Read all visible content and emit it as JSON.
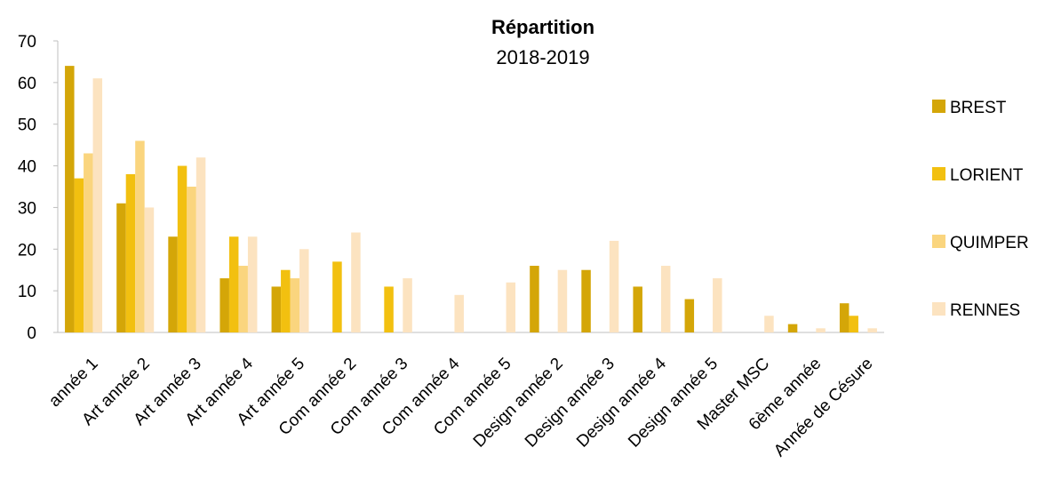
{
  "chart_data": {
    "type": "bar",
    "title": "Répartition",
    "subtitle": "2018-2019",
    "xlabel": "",
    "ylabel": "",
    "ylim": [
      0,
      70
    ],
    "yticks": [
      0,
      10,
      20,
      30,
      40,
      50,
      60,
      70
    ],
    "grid": false,
    "legend_position": "right",
    "categories": [
      "année 1",
      "Art année 2",
      "Art année 3",
      "Art année 4",
      "Art année 5",
      "Com année 2",
      "Com année 3",
      "Com année 4",
      "Com année 5",
      "Design année 2",
      "Design année 3",
      "Design année 4",
      "Design année 5",
      "Master MSC",
      "6ème année",
      "Année de Césure"
    ],
    "series": [
      {
        "name": "BREST",
        "color": "#D4A608",
        "values": [
          64,
          31,
          23,
          13,
          11,
          0,
          0,
          0,
          0,
          16,
          15,
          11,
          8,
          0,
          2,
          7
        ]
      },
      {
        "name": "LORIENT",
        "color": "#F2C010",
        "values": [
          37,
          38,
          40,
          23,
          15,
          17,
          11,
          0,
          0,
          0,
          0,
          0,
          0,
          0,
          0,
          4
        ]
      },
      {
        "name": "QUIMPER",
        "color": "#FAD57E",
        "values": [
          43,
          46,
          35,
          16,
          13,
          0,
          0,
          0,
          0,
          0,
          0,
          0,
          0,
          0,
          0,
          0
        ]
      },
      {
        "name": "RENNES",
        "color": "#FCE3C0",
        "values": [
          61,
          30,
          42,
          23,
          20,
          24,
          13,
          9,
          12,
          15,
          22,
          16,
          13,
          4,
          1,
          1
        ]
      }
    ]
  }
}
